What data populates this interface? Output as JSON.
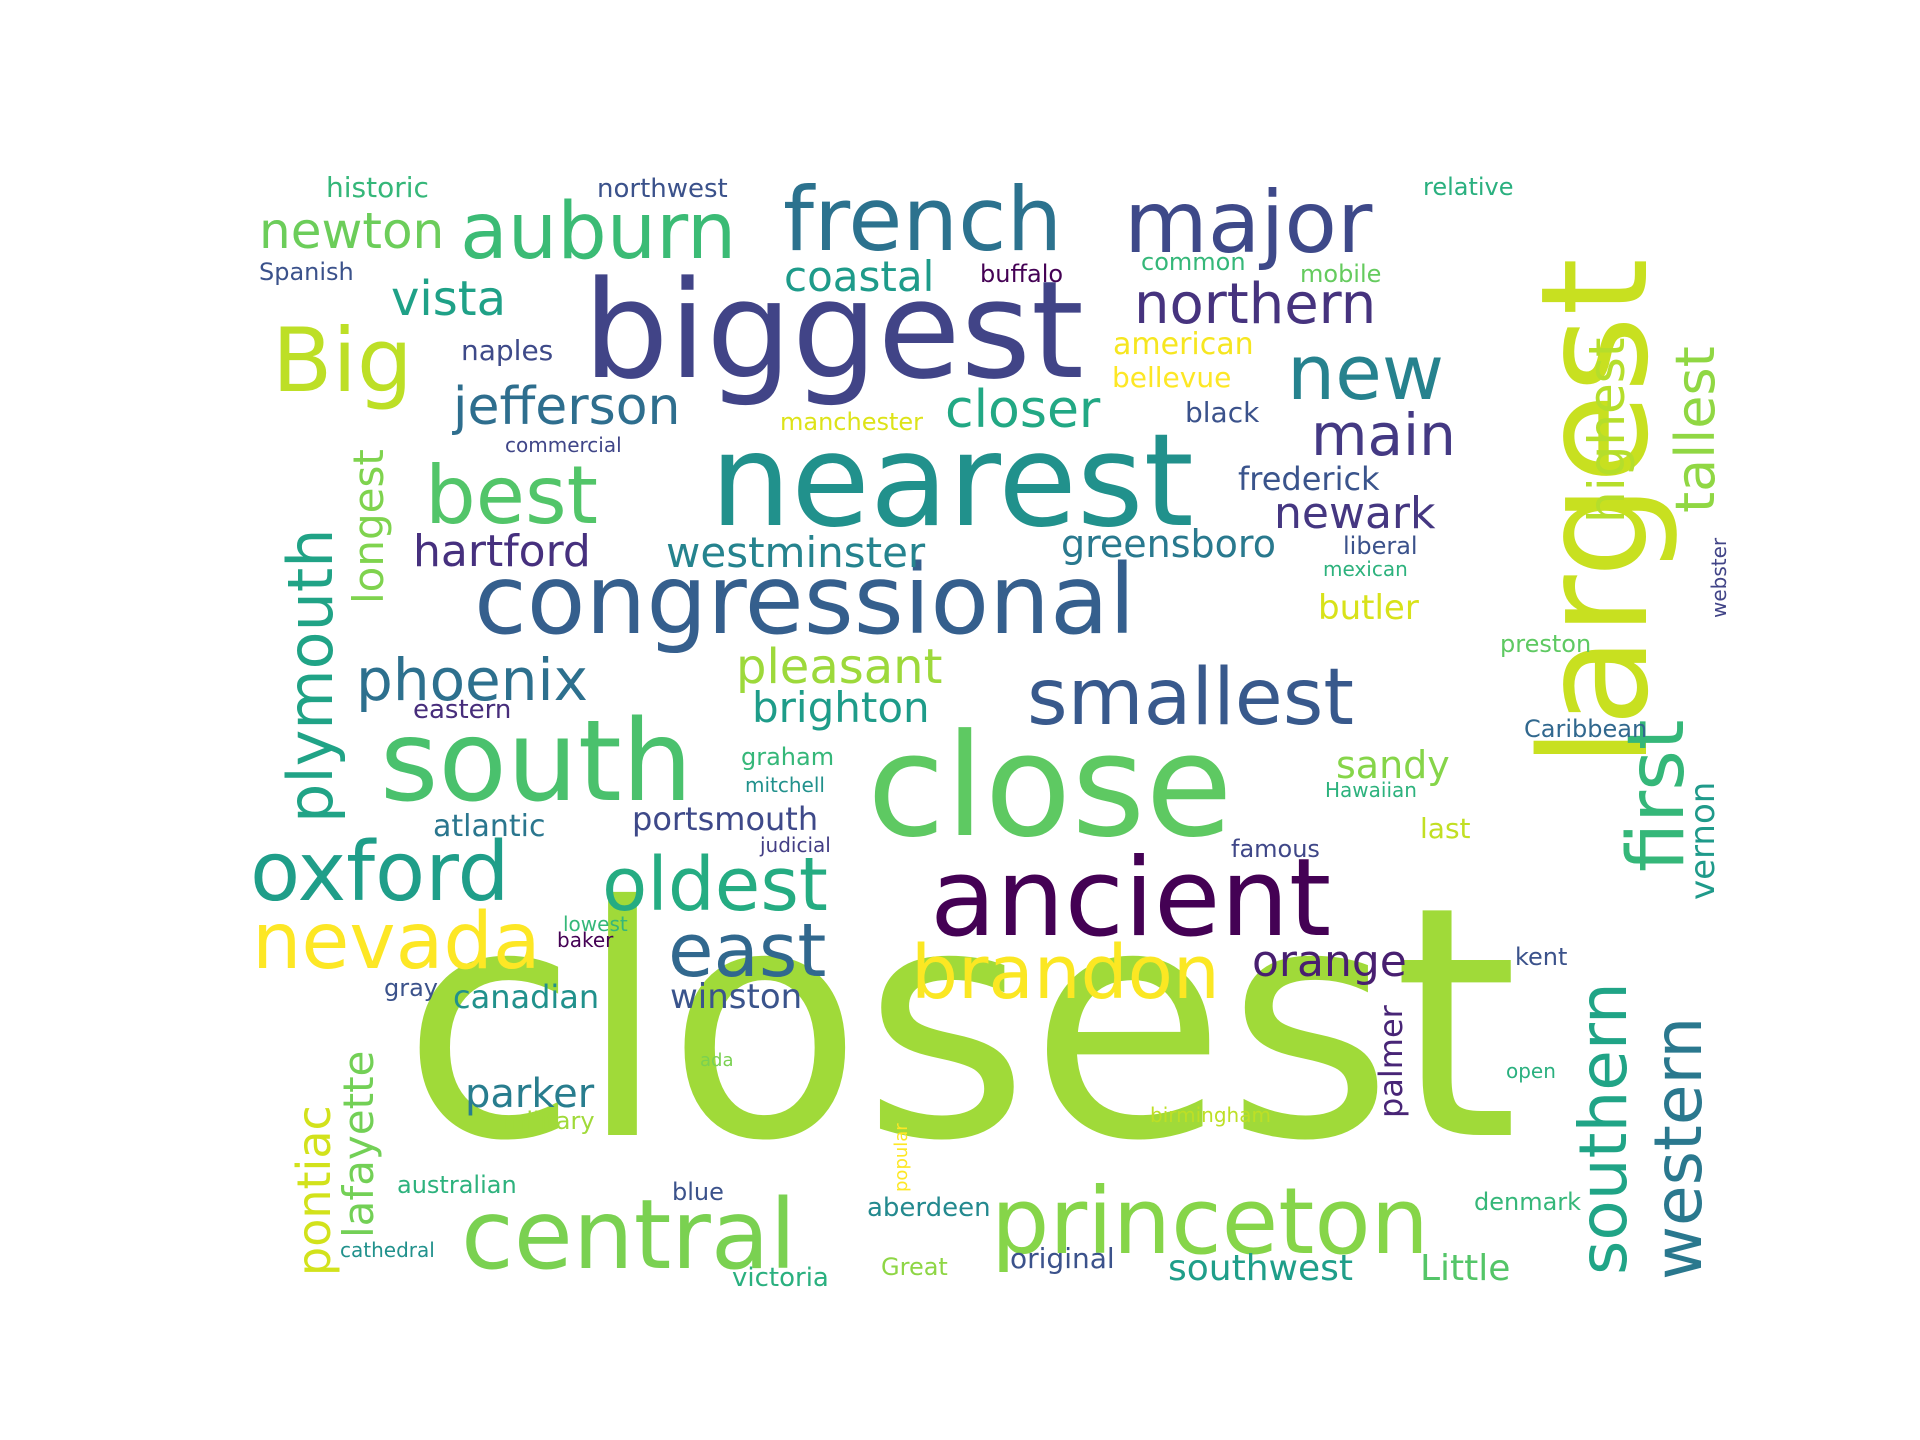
{
  "words": [
    {
      "text": "closest",
      "color": "#a0da39"
    },
    {
      "text": "largest",
      "color": "#c8e020"
    },
    {
      "text": "nearest",
      "color": "#21918c"
    },
    {
      "text": "biggest",
      "color": "#414487"
    },
    {
      "text": "congressional",
      "color": "#355f8d"
    },
    {
      "text": "close",
      "color": "#5ec962"
    },
    {
      "text": "south",
      "color": "#4ac16d"
    },
    {
      "text": "ancient",
      "color": "#440154"
    },
    {
      "text": "central",
      "color": "#7ad151"
    },
    {
      "text": "princeton",
      "color": "#86d549"
    },
    {
      "text": "french",
      "color": "#2c728e"
    },
    {
      "text": "major",
      "color": "#3e4989"
    },
    {
      "text": "auburn",
      "color": "#3bbb75"
    },
    {
      "text": "smallest",
      "color": "#38598c"
    },
    {
      "text": "oxford",
      "color": "#1f9e89"
    },
    {
      "text": "oldest",
      "color": "#25ac82"
    },
    {
      "text": "best",
      "color": "#52c569"
    },
    {
      "text": "new",
      "color": "#26828e"
    },
    {
      "text": "Big",
      "color": "#bddf26"
    },
    {
      "text": "nevada",
      "color": "#fde725"
    },
    {
      "text": "brandon",
      "color": "#fbe723"
    },
    {
      "text": "east",
      "color": "#31688e"
    },
    {
      "text": "northern",
      "color": "#46337e"
    },
    {
      "text": "phoenix",
      "color": "#2d708e"
    },
    {
      "text": "main",
      "color": "#443983"
    },
    {
      "text": "closer",
      "color": "#22a884"
    },
    {
      "text": "jefferson",
      "color": "#2e6e8e"
    },
    {
      "text": "plymouth",
      "color": "#20a386"
    },
    {
      "text": "southern",
      "color": "#20a486"
    },
    {
      "text": "western",
      "color": "#2a788e"
    },
    {
      "text": "first",
      "color": "#35b779"
    },
    {
      "text": "highest",
      "color": "#b5de2b"
    },
    {
      "text": "tallest",
      "color": "#90d743"
    },
    {
      "text": "newton",
      "color": "#6ccd5a"
    },
    {
      "text": "vista",
      "color": "#1fa187"
    },
    {
      "text": "pleasant",
      "color": "#9dd93b"
    },
    {
      "text": "hartford",
      "color": "#46307e"
    },
    {
      "text": "westminster",
      "color": "#25838e"
    },
    {
      "text": "newark",
      "color": "#453781"
    },
    {
      "text": "orange",
      "color": "#481f70"
    },
    {
      "text": "coastal",
      "color": "#1e9b8a"
    },
    {
      "text": "brighton",
      "color": "#1e9c89"
    },
    {
      "text": "greensboro",
      "color": "#29798e"
    },
    {
      "text": "frederick",
      "color": "#3a548c"
    },
    {
      "text": "pontiac",
      "color": "#d2e21b"
    },
    {
      "text": "parker",
      "color": "#287d8e"
    },
    {
      "text": "sandy",
      "color": "#86d549"
    },
    {
      "text": "butler",
      "color": "#d8e219"
    },
    {
      "text": "longest",
      "color": "#7fd34e"
    },
    {
      "text": "lafayette",
      "color": "#73d056"
    },
    {
      "text": "portsmouth",
      "color": "#3e4989"
    },
    {
      "text": "winston",
      "color": "#3a548c"
    },
    {
      "text": "canadian",
      "color": "#21918c"
    },
    {
      "text": "southwest",
      "color": "#1f9e89"
    },
    {
      "text": "Little",
      "color": "#54c568"
    },
    {
      "text": "vernon",
      "color": "#1f9a8a"
    },
    {
      "text": "atlantic",
      "color": "#2a768e"
    },
    {
      "text": "eastern",
      "color": "#472d7b"
    },
    {
      "text": "palmer",
      "color": "#482576"
    },
    {
      "text": "american",
      "color": "#f6e620"
    },
    {
      "text": "historic",
      "color": "#35b779"
    },
    {
      "text": "northwest",
      "color": "#3b528b"
    },
    {
      "text": "relative",
      "color": "#2ab07f"
    },
    {
      "text": "Spanish",
      "color": "#3b528b"
    },
    {
      "text": "buffalo",
      "color": "#440154"
    },
    {
      "text": "common",
      "color": "#35b779"
    },
    {
      "text": "mobile",
      "color": "#65cb5e"
    },
    {
      "text": "naples",
      "color": "#3e4a89"
    },
    {
      "text": "bellevue",
      "color": "#fde725"
    },
    {
      "text": "black",
      "color": "#3b528b"
    },
    {
      "text": "commercial",
      "color": "#404688"
    },
    {
      "text": "manchester",
      "color": "#dde318"
    },
    {
      "text": "liberal",
      "color": "#3b528b"
    },
    {
      "text": "mexican",
      "color": "#2db27d"
    },
    {
      "text": "webster",
      "color": "#414487"
    },
    {
      "text": "preston",
      "color": "#5ec962"
    },
    {
      "text": "Caribbean",
      "color": "#31688e"
    },
    {
      "text": "graham",
      "color": "#35b779"
    },
    {
      "text": "mitchell",
      "color": "#21918c"
    },
    {
      "text": "Hawaiian",
      "color": "#2db27d"
    },
    {
      "text": "last",
      "color": "#c2df23"
    },
    {
      "text": "judicial",
      "color": "#433e85"
    },
    {
      "text": "famous",
      "color": "#3f4788"
    },
    {
      "text": "lowest",
      "color": "#35b779"
    },
    {
      "text": "baker",
      "color": "#440154"
    },
    {
      "text": "kent",
      "color": "#3b528b"
    },
    {
      "text": "gray",
      "color": "#3b528b"
    },
    {
      "text": "ada",
      "color": "#7ad151"
    },
    {
      "text": "open",
      "color": "#2ab07f"
    },
    {
      "text": "military",
      "color": "#a0da39"
    },
    {
      "text": "birmingham",
      "color": "#bddf26"
    },
    {
      "text": "popular",
      "color": "#fde725"
    },
    {
      "text": "australian",
      "color": "#2db27d"
    },
    {
      "text": "blue",
      "color": "#3b528b"
    },
    {
      "text": "aberdeen",
      "color": "#23898e"
    },
    {
      "text": "denmark",
      "color": "#35b779"
    },
    {
      "text": "cathedral",
      "color": "#21918c"
    },
    {
      "text": "victoria",
      "color": "#2ab07f"
    },
    {
      "text": "Great",
      "color": "#8ed645"
    },
    {
      "text": "original",
      "color": "#3b528b"
    }
  ]
}
